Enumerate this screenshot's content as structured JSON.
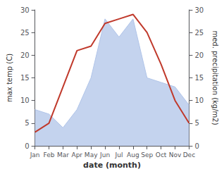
{
  "chart_data": {
    "type": "line",
    "xlabel": "date (month)",
    "ylabel": "max temp (C)",
    "y2label": "med. precipitation (kg/m2)",
    "categories": [
      "Jan",
      "Feb",
      "Mar",
      "Apr",
      "May",
      "Jun",
      "Jul",
      "Aug",
      "Sep",
      "Oct",
      "Nov",
      "Dec"
    ],
    "series": [
      {
        "type": "area",
        "axis": "y2",
        "color": "#b0c4e8",
        "values": [
          8,
          7,
          4,
          8,
          15,
          28,
          24,
          28,
          15,
          14,
          13,
          9
        ]
      },
      {
        "type": "line",
        "color": "#c0392b",
        "values": [
          3,
          5,
          13,
          21,
          22,
          27,
          28,
          29,
          25,
          18,
          10,
          5
        ]
      }
    ],
    "ylim": [
      0,
      30
    ],
    "yticks": [
      0,
      5,
      10,
      15,
      20,
      25,
      30
    ],
    "y2lim": [
      0,
      30
    ],
    "y2ticks": [
      0,
      5,
      10,
      15,
      20,
      25,
      30
    ],
    "grid": false
  }
}
